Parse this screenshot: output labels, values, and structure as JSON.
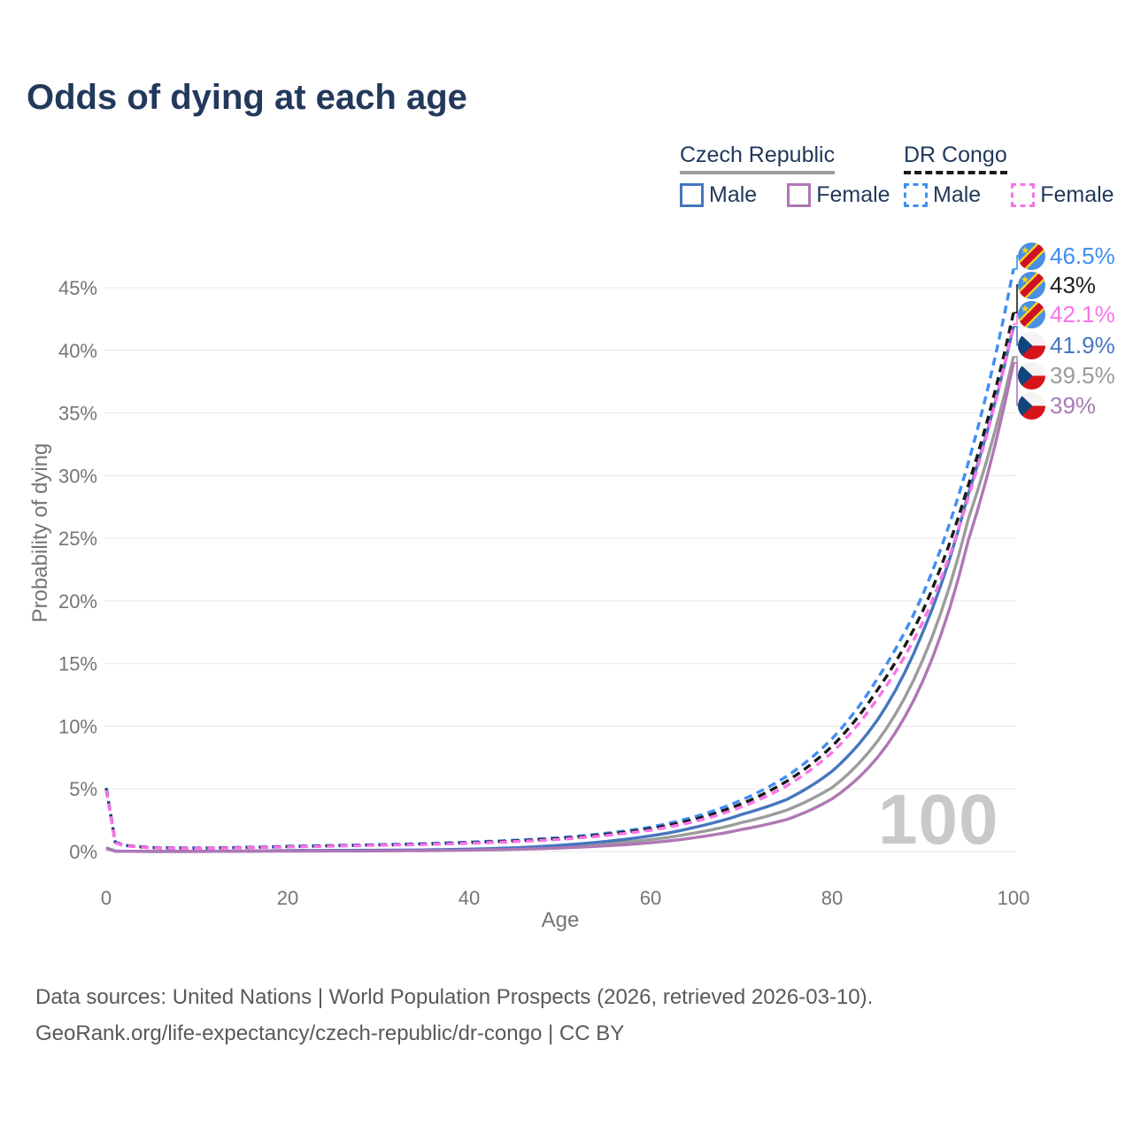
{
  "title": "Odds of dying at each age",
  "legend": {
    "groups": [
      {
        "label": "Czech Republic",
        "line_style": "solid",
        "line_color": "#9e9e9e",
        "items": [
          {
            "label": "Male",
            "color": "#4576bc"
          },
          {
            "label": "Female",
            "color": "#af77b4"
          }
        ]
      },
      {
        "label": "DR Congo",
        "line_style": "dashed",
        "line_color": "#1a1a1a",
        "items": [
          {
            "label": "Male",
            "color": "#3f8ef3"
          },
          {
            "label": "Female",
            "color": "#f973e9"
          }
        ]
      }
    ]
  },
  "chart_data": {
    "type": "line",
    "title": "Odds of dying at each age",
    "xlabel": "Age",
    "ylabel": "Probability of dying",
    "xlim": [
      0,
      100
    ],
    "ylim": [
      0,
      45
    ],
    "grid": "horizontal",
    "watermark": "100",
    "xticks": [
      0,
      20,
      40,
      60,
      80,
      100
    ],
    "yticks": [
      "0%",
      "5%",
      "10%",
      "15%",
      "20%",
      "25%",
      "30%",
      "35%",
      "40%",
      "45%"
    ],
    "x": [
      0,
      1,
      2,
      5,
      10,
      15,
      20,
      25,
      30,
      35,
      40,
      45,
      50,
      55,
      60,
      65,
      70,
      75,
      80,
      85,
      90,
      95,
      100
    ],
    "series": [
      {
        "id": "drc-male",
        "name": "DR Congo Male",
        "color": "#3f8ef3",
        "label_color": "#3f8ef3",
        "dashed": true,
        "end_label": "46.5%",
        "values": [
          5.1,
          0.75,
          0.5,
          0.32,
          0.28,
          0.33,
          0.42,
          0.48,
          0.55,
          0.63,
          0.75,
          0.9,
          1.1,
          1.45,
          1.95,
          2.8,
          4.1,
          6.0,
          9.0,
          13.8,
          20.5,
          31.0,
          46.5
        ]
      },
      {
        "id": "drc-both",
        "name": "DR Congo (both sexes)",
        "color": "#1a1a1a",
        "label_color": "#1f1f1f",
        "dashed": true,
        "end_label": "43%",
        "values": [
          5.0,
          0.72,
          0.48,
          0.3,
          0.26,
          0.31,
          0.39,
          0.45,
          0.52,
          0.59,
          0.7,
          0.84,
          1.03,
          1.36,
          1.82,
          2.6,
          3.8,
          5.6,
          8.4,
          12.9,
          19.2,
          29.2,
          43.0
        ]
      },
      {
        "id": "drc-female",
        "name": "DR Congo Female",
        "color": "#f973e9",
        "label_color": "#f973e9",
        "dashed": true,
        "end_label": "42.1%",
        "values": [
          4.9,
          0.69,
          0.46,
          0.29,
          0.25,
          0.3,
          0.37,
          0.43,
          0.5,
          0.56,
          0.66,
          0.79,
          0.97,
          1.28,
          1.7,
          2.42,
          3.55,
          5.25,
          7.9,
          12.2,
          18.3,
          28.2,
          42.1
        ]
      },
      {
        "id": "cz-male",
        "name": "Czech Republic Male",
        "color": "#4576bc",
        "label_color": "#4577bd",
        "dashed": false,
        "end_label": "41.9%",
        "values": [
          0.28,
          0.04,
          0.02,
          0.01,
          0.012,
          0.03,
          0.08,
          0.09,
          0.1,
          0.13,
          0.19,
          0.3,
          0.5,
          0.8,
          1.25,
          1.95,
          2.95,
          4.15,
          6.4,
          10.5,
          17.5,
          28.5,
          41.9
        ]
      },
      {
        "id": "cz-both",
        "name": "Czech Republic (both sexes)",
        "color": "#9c9c9c",
        "label_color": "#9a9a9a",
        "dashed": false,
        "end_label": "39.5%",
        "values": [
          0.25,
          0.03,
          0.018,
          0.009,
          0.01,
          0.025,
          0.055,
          0.06,
          0.07,
          0.1,
          0.15,
          0.23,
          0.38,
          0.61,
          0.95,
          1.5,
          2.3,
          3.3,
          5.1,
          8.8,
          15.3,
          26.5,
          39.5
        ]
      },
      {
        "id": "cz-female",
        "name": "Czech Republic Female",
        "color": "#af77b4",
        "label_color": "#a97ab5",
        "dashed": false,
        "end_label": "39%",
        "values": [
          0.23,
          0.028,
          0.015,
          0.008,
          0.009,
          0.02,
          0.035,
          0.04,
          0.05,
          0.07,
          0.11,
          0.17,
          0.28,
          0.45,
          0.7,
          1.12,
          1.75,
          2.55,
          4.2,
          7.5,
          13.6,
          24.8,
          39.0
        ]
      }
    ]
  },
  "end_labels": [
    {
      "value": "46.5%",
      "series": "DR Congo Male",
      "flag": "dr-congo"
    },
    {
      "value": "43%",
      "series": "DR Congo (both sexes)",
      "flag": "dr-congo"
    },
    {
      "value": "42.1%",
      "series": "DR Congo Female",
      "flag": "dr-congo"
    },
    {
      "value": "41.9%",
      "series": "Czech Republic Male",
      "flag": "czech-republic"
    },
    {
      "value": "39.5%",
      "series": "Czech Republic (both sexes)",
      "flag": "czech-republic"
    },
    {
      "value": "39%",
      "series": "Czech Republic Female",
      "flag": "czech-republic"
    }
  ],
  "source": {
    "line1": "Data sources: United Nations | World Population Prospects (2026, retrieved 2026-03-10).",
    "line2": "GeoRank.org/life-expectancy/czech-republic/dr-congo | CC BY"
  }
}
